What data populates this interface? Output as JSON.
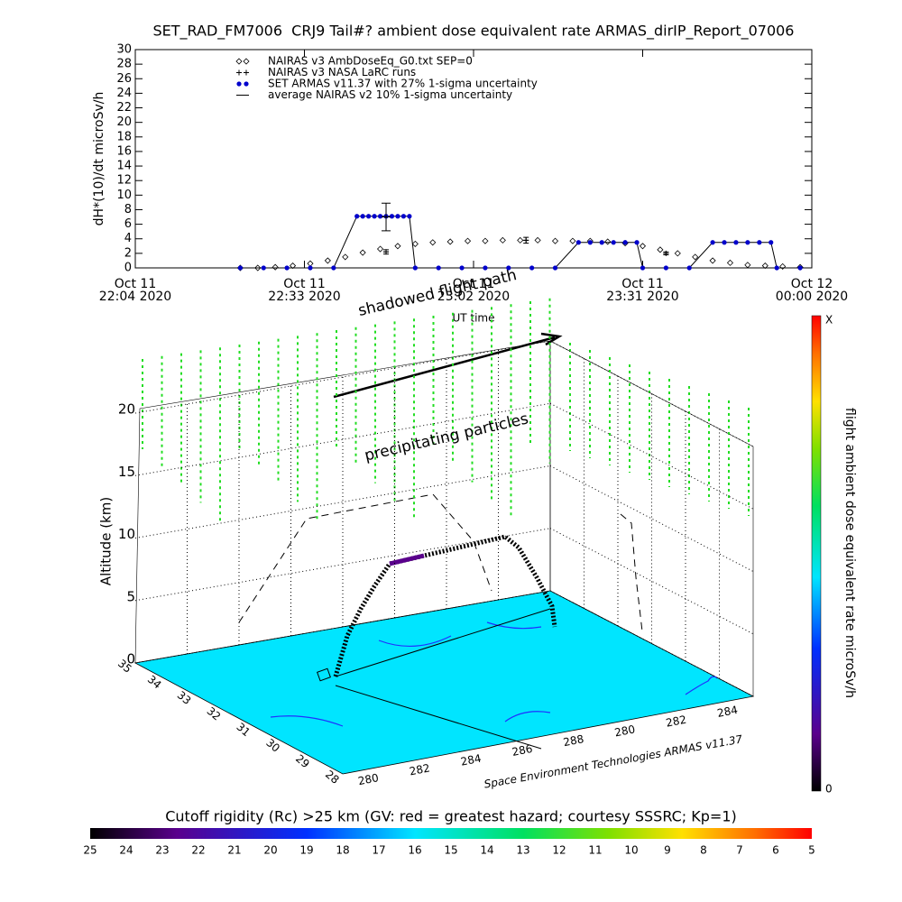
{
  "chart_data": [
    {
      "type": "line",
      "title": "SET_RAD_FM7006  CRJ9 Tail#? ambient dose equivalent rate ARMAS_dirIP_Report_07006",
      "xlabel": "UT time",
      "ylabel": "dH*(10)/dt microSv/h",
      "xlim": [
        "2020-10-11 22:04",
        "2020-10-12 00:00"
      ],
      "xticks": [
        {
          "value": "2020-10-11 22:04",
          "label": [
            "Oct 11",
            "22:04 2020"
          ]
        },
        {
          "value": "2020-10-11 22:33",
          "label": [
            "Oct 11",
            "22:33 2020"
          ]
        },
        {
          "value": "2020-10-11 23:02",
          "label": [
            "Oct 11",
            "23:02 2020"
          ]
        },
        {
          "value": "2020-10-11 23:31",
          "label": [
            "Oct 11",
            "23:31 2020"
          ]
        },
        {
          "value": "2020-10-12 00:00",
          "label": [
            "Oct 12",
            "00:00 2020"
          ]
        }
      ],
      "ylim": [
        0,
        30
      ],
      "yticks": [
        0,
        2,
        4,
        6,
        8,
        10,
        12,
        14,
        16,
        18,
        20,
        22,
        24,
        26,
        28,
        30
      ],
      "series": [
        {
          "name": "NAIRAS v3 AmbDoseEq_G0.txt SEP=0",
          "color": "#000000",
          "marker": "diamond",
          "line": false,
          "x": [
            "2020-10-11 22:22",
            "2020-10-11 22:25",
            "2020-10-11 22:28",
            "2020-10-11 22:31",
            "2020-10-11 22:34",
            "2020-10-11 22:37",
            "2020-10-11 22:40",
            "2020-10-11 22:43",
            "2020-10-11 22:46",
            "2020-10-11 22:49",
            "2020-10-11 22:52",
            "2020-10-11 22:55",
            "2020-10-11 22:58",
            "2020-10-11 23:01",
            "2020-10-11 23:04",
            "2020-10-11 23:07",
            "2020-10-11 23:10",
            "2020-10-11 23:13",
            "2020-10-11 23:16",
            "2020-10-11 23:19",
            "2020-10-11 23:22",
            "2020-10-11 23:25",
            "2020-10-11 23:28",
            "2020-10-11 23:31",
            "2020-10-11 23:34",
            "2020-10-11 23:37",
            "2020-10-11 23:40",
            "2020-10-11 23:43",
            "2020-10-11 23:46",
            "2020-10-11 23:49",
            "2020-10-11 23:52",
            "2020-10-11 23:55",
            "2020-10-11 23:58"
          ],
          "values": [
            0,
            0,
            0.1,
            0.3,
            0.6,
            1.0,
            1.5,
            2.1,
            2.6,
            3.0,
            3.3,
            3.5,
            3.6,
            3.7,
            3.7,
            3.8,
            3.8,
            3.8,
            3.7,
            3.7,
            3.7,
            3.6,
            3.4,
            3.0,
            2.5,
            2.0,
            1.5,
            1.0,
            0.7,
            0.4,
            0.3,
            0.2,
            0.1
          ]
        },
        {
          "name": "NAIRAS v3 NASA LaRC runs",
          "color": "#000000",
          "marker": "plus",
          "line": false,
          "x": [
            "2020-10-11 22:47",
            "2020-10-11 23:11",
            "2020-10-11 23:35"
          ],
          "values": [
            2.2,
            3.8,
            2.0
          ],
          "errors": [
            0.3,
            0.4,
            0.2
          ]
        },
        {
          "name": "SET ARMAS v11.37 with 27% 1-sigma uncertainty",
          "color": "#0000cc",
          "marker": "dot",
          "line": true,
          "x": [
            "2020-10-11 22:22",
            "2020-10-11 22:26",
            "2020-10-11 22:30",
            "2020-10-11 22:34",
            "2020-10-11 22:38",
            "2020-10-11 22:42",
            "2020-10-11 22:43",
            "2020-10-11 22:44",
            "2020-10-11 22:45",
            "2020-10-11 22:46",
            "2020-10-11 22:47",
            "2020-10-11 22:48",
            "2020-10-11 22:49",
            "2020-10-11 22:50",
            "2020-10-11 22:51",
            "2020-10-11 22:52",
            "2020-10-11 22:56",
            "2020-10-11 23:00",
            "2020-10-11 23:04",
            "2020-10-11 23:08",
            "2020-10-11 23:12",
            "2020-10-11 23:16",
            "2020-10-11 23:20",
            "2020-10-11 23:22",
            "2020-10-11 23:24",
            "2020-10-11 23:26",
            "2020-10-11 23:28",
            "2020-10-11 23:30",
            "2020-10-11 23:31",
            "2020-10-11 23:35",
            "2020-10-11 23:39",
            "2020-10-11 23:43",
            "2020-10-11 23:45",
            "2020-10-11 23:47",
            "2020-10-11 23:49",
            "2020-10-11 23:51",
            "2020-10-11 23:53",
            "2020-10-11 23:54",
            "2020-10-11 23:58"
          ],
          "values": [
            0,
            0,
            0,
            0,
            0,
            7.1,
            7.1,
            7.1,
            7.1,
            7.1,
            7.1,
            7.1,
            7.1,
            7.1,
            7.1,
            0,
            0,
            0,
            0,
            0,
            0,
            0,
            3.5,
            3.5,
            3.5,
            3.5,
            3.5,
            3.5,
            0,
            0,
            0,
            3.5,
            3.5,
            3.5,
            3.5,
            3.5,
            3.5,
            0,
            0
          ]
        },
        {
          "name": "average NAIRAS v2 10% 1-sigma uncertainty",
          "color": "#000000",
          "marker": "errorbar",
          "line": false,
          "x": [
            "2020-10-11 22:47"
          ],
          "values": [
            7.0
          ],
          "errors": [
            1.9
          ]
        }
      ]
    },
    {
      "type": "3d",
      "zlabel": "Altitude (km)",
      "zlim": [
        0,
        20
      ],
      "zticks": [
        0,
        5,
        10,
        15,
        20
      ],
      "latlim": [
        35,
        28
      ],
      "latticks": [
        35,
        34,
        33,
        32,
        31,
        30,
        29,
        28
      ],
      "lon_labels": [
        "280",
        "282",
        "284",
        "286",
        "288",
        "280",
        "282",
        "284"
      ],
      "annotations": [
        "shadowed flight path",
        "precipitating particles",
        "Space Environment Technologies ARMAS v11.37"
      ],
      "colorbar": {
        "title": "flight ambient dose equivalent rate microSv/h",
        "labels": [
          "X",
          "0"
        ]
      },
      "rigidity": {
        "title": "Cutoff rigidity (Rc) >25 km (GV: red = greatest hazard; courtesy SSSRC; Kp=1)",
        "lim": [
          25,
          5
        ],
        "ticks": [
          25,
          24,
          23,
          22,
          21,
          20,
          19,
          18,
          17,
          16,
          15,
          14,
          13,
          12,
          11,
          10,
          9,
          8,
          7,
          6,
          5
        ]
      }
    }
  ]
}
